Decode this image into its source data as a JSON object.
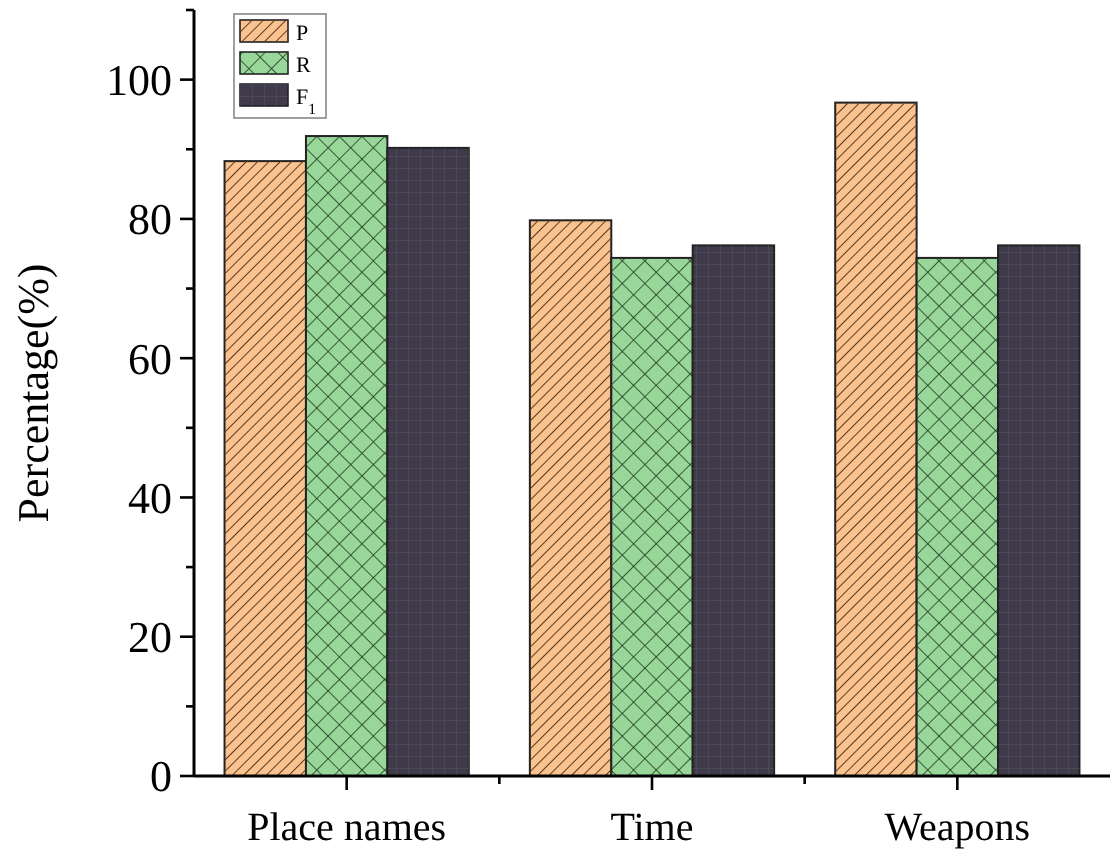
{
  "chart_data": {
    "type": "bar",
    "ylabel": "Percentage(%)",
    "categories": [
      "Place names",
      "Time",
      "Weapons"
    ],
    "series": [
      {
        "name": "P",
        "color": "#f9c28e",
        "values": [
          88.3,
          79.8,
          96.7
        ]
      },
      {
        "name": "R",
        "color": "#99d69a",
        "values": [
          91.9,
          74.4,
          74.4
        ]
      },
      {
        "name": "F$_{1}$",
        "color": "#403b4a",
        "values": [
          90.2,
          76.2,
          76.2
        ]
      }
    ],
    "ylim": [
      0,
      110
    ],
    "yticks": [
      0,
      {
        "value": 10,
        "label": null
      },
      20,
      {
        "value": 30,
        "label": null
      },
      40,
      {
        "value": 50,
        "label": null
      },
      60,
      {
        "value": 70,
        "label": null
      },
      80,
      {
        "value": 90,
        "label": null
      },
      100,
      {
        "value": 110,
        "label": null
      }
    ],
    "grid": false,
    "legend": "top left"
  }
}
